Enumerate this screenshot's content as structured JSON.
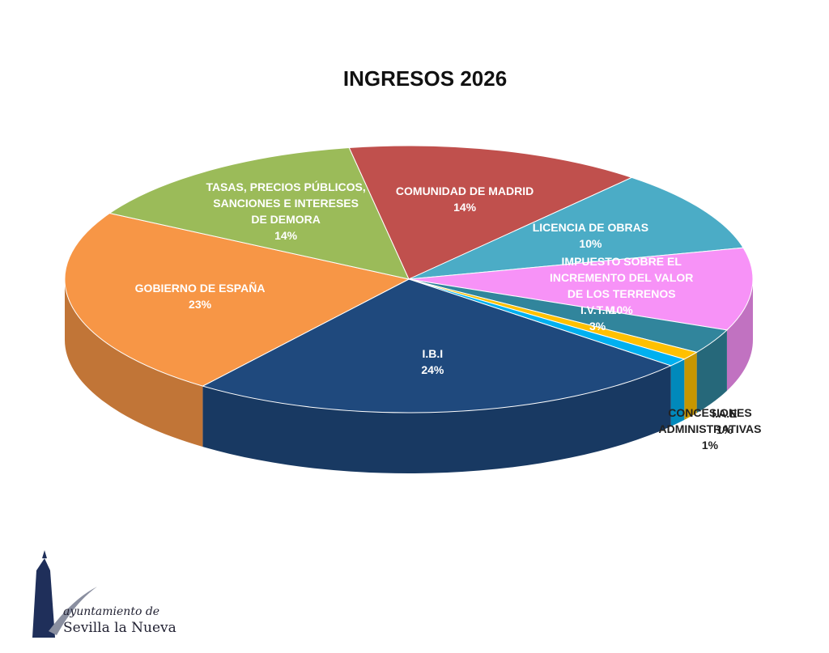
{
  "chart_data": {
    "type": "pie",
    "title": "INGRESOS 2026",
    "categories": [
      "COMUNIDAD DE MADRID",
      "LICENCIA DE OBRAS",
      "IMPUESTO SOBRE EL INCREMENTO DEL VALOR DE LOS TERRENOS",
      "I.V.T.M",
      "I.A.E",
      "CONCESIONES ADMINISTRATIVAS",
      "I.B.I",
      "GOBIERNO DE ESPAÑA",
      "TASAS, PRECIOS PÚBLICOS, SANCIONES E INTERESES DE DEMORA"
    ],
    "values": [
      14,
      10,
      10,
      3,
      1,
      1,
      24,
      23,
      14
    ],
    "value_labels": [
      "14%",
      "10%",
      "10%",
      "3%",
      "1%",
      "1%",
      "24%",
      "23%",
      "14%"
    ],
    "colors": [
      "#c0504d",
      "#4bacc6",
      "#f792f7",
      "#31859c",
      "#ffc000",
      "#00b0f0",
      "#1f497d",
      "#f79646",
      "#9bbb59"
    ]
  },
  "logo": {
    "line1": "ayuntamiento de",
    "line2": "Sevilla la Nueva"
  }
}
